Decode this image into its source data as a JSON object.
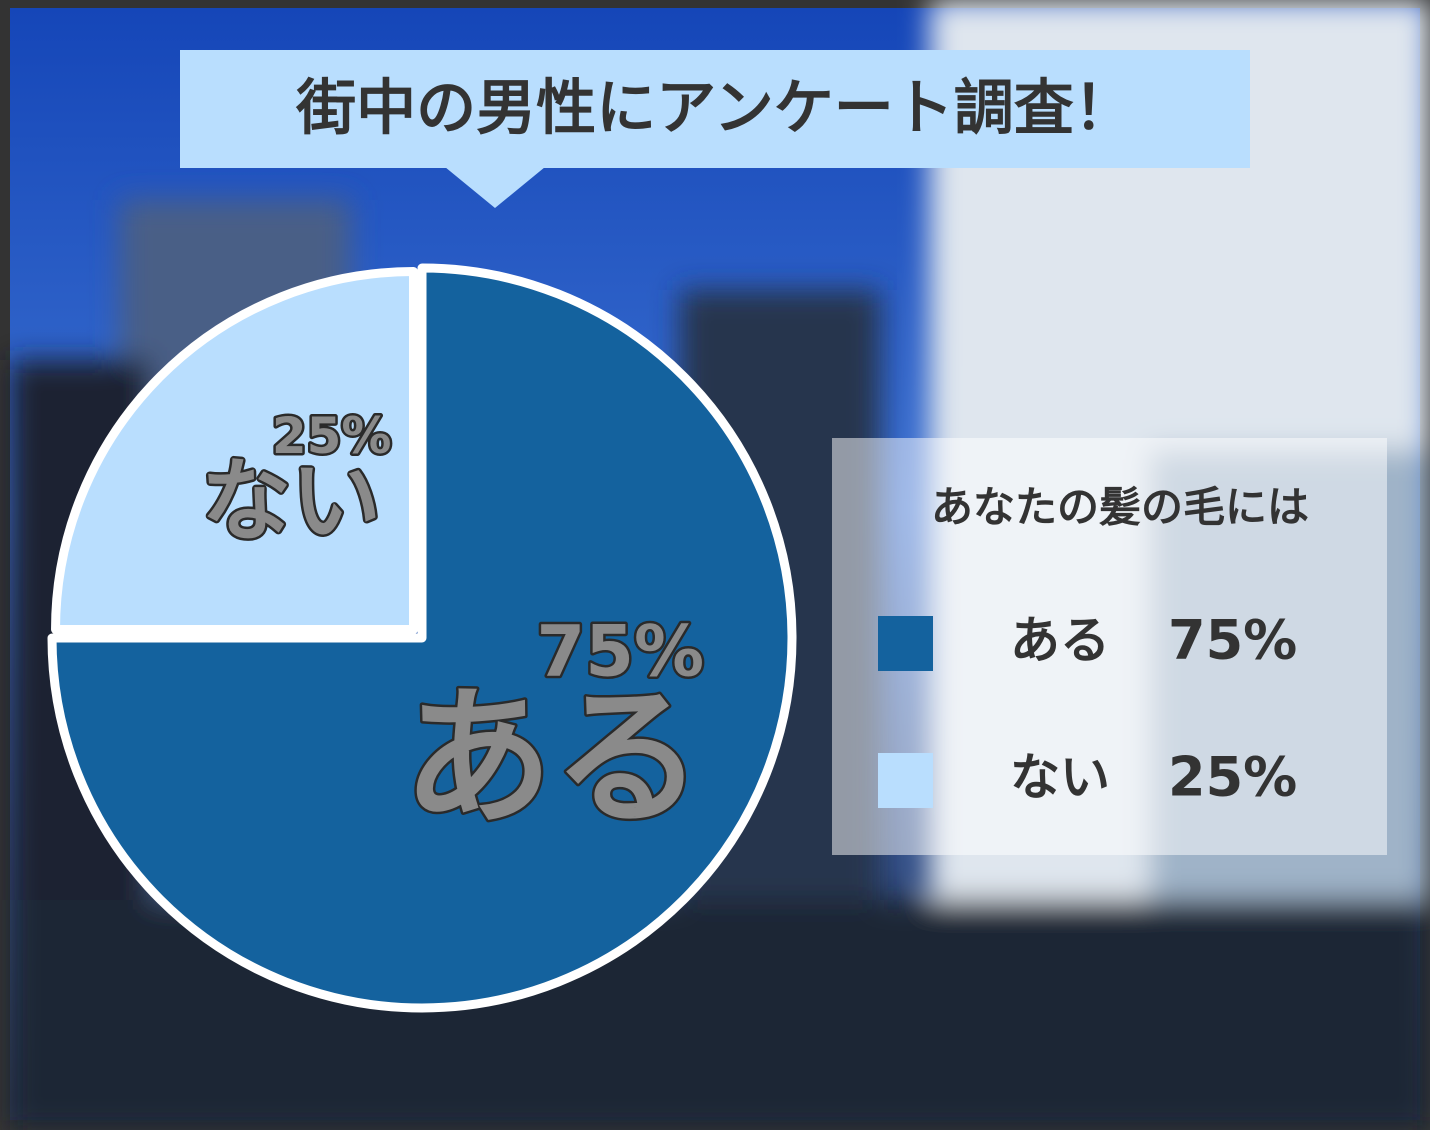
{
  "chart_data": {
    "type": "pie",
    "title": "街中の男性にアンケート調査！",
    "legend_title": "あなたの髪の毛には",
    "categories": [
      "ある",
      "ない"
    ],
    "values": [
      75,
      25
    ],
    "value_labels": [
      "75%",
      "25%"
    ],
    "colors": [
      "#14629e",
      "#b9defe"
    ],
    "legend": "right"
  }
}
